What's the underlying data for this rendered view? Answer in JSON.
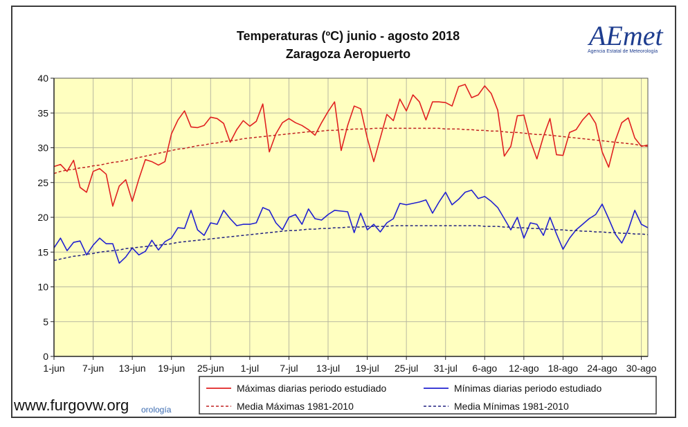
{
  "chart_data": {
    "type": "line",
    "title": [
      "Temperaturas (ºC) junio - agosto 2018",
      "Zaragoza Aeropuerto"
    ],
    "xlabel": "",
    "ylabel": "",
    "ylim": [
      0,
      40
    ],
    "yticks": [
      0,
      5,
      10,
      15,
      20,
      25,
      30,
      35,
      40
    ],
    "x_tick_labels": [
      "1-jun",
      "7-jun",
      "13-jun",
      "19-jun",
      "25-jun",
      "1-jul",
      "7-jul",
      "13-jul",
      "19-jul",
      "25-jul",
      "31-jul",
      "6-ago",
      "12-ago",
      "18-ago",
      "24-ago",
      "30-ago"
    ],
    "n_days": 92,
    "grid": true,
    "plot_background": "#ffffc0",
    "legend_position": "bottom",
    "series": [
      {
        "name": "Máximas diarias periodo estudiado",
        "color": "#e02020",
        "style": "solid",
        "values": [
          27.3,
          27.6,
          26.6,
          28.2,
          24.3,
          23.6,
          26.6,
          27.0,
          26.2,
          21.6,
          24.5,
          25.4,
          22.3,
          25.5,
          28.3,
          28.0,
          27.5,
          28.0,
          32.0,
          34.0,
          35.3,
          33.0,
          32.9,
          33.2,
          34.4,
          34.2,
          33.5,
          30.8,
          32.6,
          33.9,
          33.1,
          33.8,
          36.3,
          29.4,
          32.0,
          33.6,
          34.2,
          33.6,
          33.2,
          32.6,
          31.8,
          33.6,
          35.2,
          36.6,
          29.6,
          33.2,
          36.0,
          35.6,
          31.4,
          28.0,
          31.4,
          34.8,
          33.9,
          37.0,
          35.3,
          37.6,
          36.6,
          34.0,
          36.6,
          36.6,
          36.5,
          36.0,
          38.8,
          39.1,
          37.2,
          37.6,
          38.9,
          37.8,
          35.4,
          28.8,
          30.2,
          34.6,
          34.7,
          31.0,
          28.4,
          31.6,
          34.2,
          29.0,
          28.9,
          32.2,
          32.6,
          34.0,
          35.0,
          33.5,
          29.4,
          27.2,
          31.0,
          33.6,
          34.3,
          31.4,
          30.2,
          30.4
        ]
      },
      {
        "name": "Mínimas diarias periodo estudiado",
        "color": "#2020d0",
        "style": "solid",
        "values": [
          15.6,
          17.0,
          15.2,
          16.4,
          16.6,
          14.6,
          16.0,
          17.0,
          16.2,
          16.2,
          13.4,
          14.3,
          15.6,
          14.6,
          15.1,
          16.7,
          15.3,
          16.5,
          17.0,
          18.5,
          18.4,
          21.0,
          18.2,
          17.4,
          19.2,
          19.0,
          21.0,
          19.8,
          18.8,
          19.0,
          19.0,
          19.2,
          21.4,
          21.0,
          19.2,
          18.2,
          20.0,
          20.4,
          19.0,
          21.2,
          19.8,
          19.6,
          20.4,
          21.0,
          20.9,
          20.8,
          17.8,
          20.6,
          18.2,
          19.0,
          17.9,
          19.2,
          19.8,
          22.0,
          21.8,
          22.0,
          22.2,
          22.5,
          20.6,
          22.2,
          23.6,
          21.8,
          22.6,
          23.6,
          23.9,
          22.7,
          23.0,
          22.3,
          21.4,
          19.8,
          18.2,
          20.0,
          17.0,
          19.2,
          19.0,
          17.4,
          20.0,
          17.6,
          15.4,
          17.0,
          18.2,
          19.0,
          19.8,
          20.4,
          21.9,
          19.8,
          17.6,
          16.3,
          18.2,
          21.0,
          19.0,
          18.5
        ]
      },
      {
        "name": "Media Máximas 1981-2010",
        "color": "#c02020",
        "style": "dashed",
        "values": [
          26.3,
          26.6,
          26.8,
          26.9,
          27.1,
          27.2,
          27.4,
          27.5,
          27.7,
          27.9,
          28.0,
          28.2,
          28.4,
          28.6,
          28.8,
          29.0,
          29.2,
          29.4,
          29.6,
          29.8,
          29.9,
          30.1,
          30.3,
          30.4,
          30.6,
          30.7,
          30.9,
          31.0,
          31.1,
          31.3,
          31.4,
          31.5,
          31.6,
          31.7,
          31.8,
          31.9,
          32.0,
          32.1,
          32.2,
          32.3,
          32.3,
          32.4,
          32.5,
          32.5,
          32.6,
          32.6,
          32.7,
          32.7,
          32.7,
          32.8,
          32.8,
          32.8,
          32.8,
          32.8,
          32.8,
          32.8,
          32.8,
          32.8,
          32.8,
          32.8,
          32.7,
          32.7,
          32.7,
          32.6,
          32.6,
          32.5,
          32.5,
          32.4,
          32.4,
          32.3,
          32.2,
          32.2,
          32.1,
          32.0,
          31.9,
          31.9,
          31.8,
          31.7,
          31.6,
          31.5,
          31.4,
          31.3,
          31.2,
          31.1,
          31.0,
          30.9,
          30.8,
          30.7,
          30.6,
          30.5,
          30.3,
          30.2
        ]
      },
      {
        "name": "Media Mínimas 1981-2010",
        "color": "#202080",
        "style": "dashed",
        "values": [
          13.8,
          14.0,
          14.2,
          14.4,
          14.5,
          14.7,
          14.8,
          15.0,
          15.1,
          15.2,
          15.3,
          15.5,
          15.6,
          15.7,
          15.8,
          15.9,
          16.0,
          16.1,
          16.2,
          16.4,
          16.5,
          16.6,
          16.7,
          16.8,
          16.9,
          17.0,
          17.1,
          17.2,
          17.3,
          17.4,
          17.5,
          17.6,
          17.7,
          17.8,
          17.9,
          18.0,
          18.1,
          18.1,
          18.2,
          18.3,
          18.3,
          18.4,
          18.4,
          18.5,
          18.5,
          18.6,
          18.6,
          18.6,
          18.7,
          18.7,
          18.7,
          18.7,
          18.8,
          18.8,
          18.8,
          18.8,
          18.8,
          18.8,
          18.8,
          18.8,
          18.8,
          18.8,
          18.8,
          18.8,
          18.8,
          18.8,
          18.7,
          18.7,
          18.7,
          18.6,
          18.6,
          18.5,
          18.5,
          18.4,
          18.4,
          18.3,
          18.3,
          18.2,
          18.2,
          18.1,
          18.1,
          18.0,
          18.0,
          17.9,
          17.9,
          17.8,
          17.8,
          17.7,
          17.7,
          17.6,
          17.6,
          17.5
        ]
      }
    ]
  },
  "logo": {
    "text": "AEmet",
    "subtitle": "Agencia Estatal de Meteorología"
  },
  "watermark": {
    "text": "www.furgovw.org",
    "partial_text": "orología"
  }
}
